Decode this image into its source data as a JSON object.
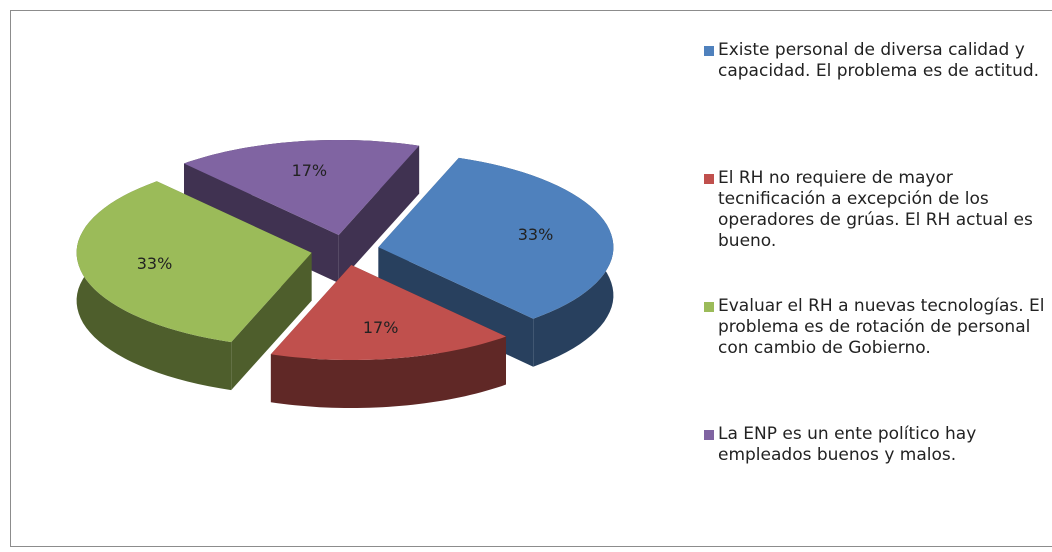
{
  "chart_data": {
    "type": "pie3d",
    "categories": [
      "Existe personal de diversa calidad y capacidad.  El problema es de actitud.",
      "El RH no requiere de mayor tecnificación a excepción de los operadores de grúas. El RH actual es bueno.",
      "Evaluar el RH a nuevas tecnologías. El problema es de rotación de personal con cambio de Gobierno.",
      "La ENP es un ente político hay empleados buenos y malos."
    ],
    "values": [
      33,
      17,
      33,
      17
    ],
    "value_labels": [
      "33%",
      "17%",
      "33%",
      "17%"
    ],
    "colors": [
      "#4f81bd",
      "#c0504d",
      "#9bbb59",
      "#8064a2"
    ],
    "legend": "right"
  }
}
